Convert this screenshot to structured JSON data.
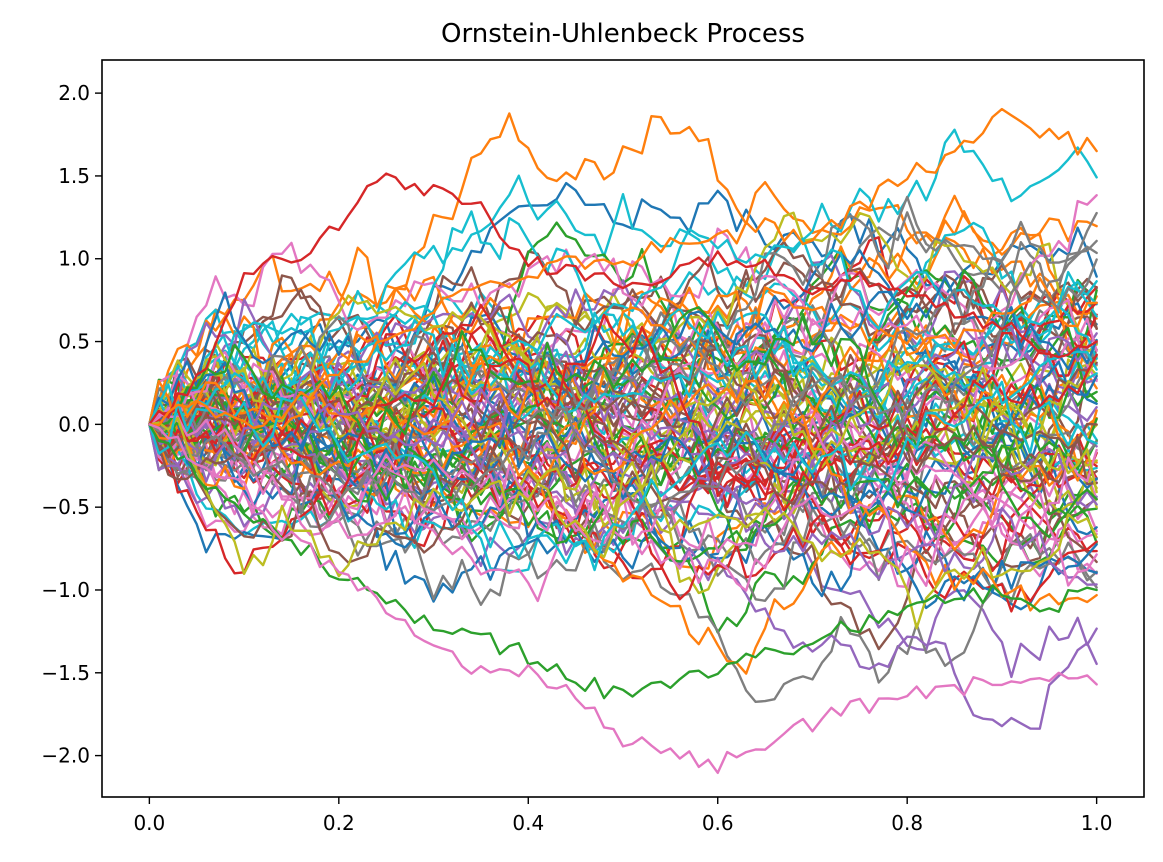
{
  "chart_data": {
    "type": "line",
    "title": "Ornstein-Uhlenbeck Process",
    "xlabel": "",
    "ylabel": "",
    "xlim": [
      -0.05,
      1.05
    ],
    "ylim": [
      -2.25,
      2.2
    ],
    "x_ticks": [
      0.0,
      0.2,
      0.4,
      0.6,
      0.8,
      1.0
    ],
    "x_tick_labels": [
      "0.0",
      "0.2",
      "0.4",
      "0.6",
      "0.8",
      "1.0"
    ],
    "y_ticks": [
      -2.0,
      -1.5,
      -1.0,
      -0.5,
      0.0,
      0.5,
      1.0,
      1.5,
      2.0
    ],
    "y_tick_labels": [
      "−2.0",
      "−1.5",
      "−1.0",
      "−0.5",
      "0.0",
      "0.5",
      "1.0",
      "1.5",
      "2.0"
    ],
    "grid": false,
    "legend": "none",
    "x_start": 0.0,
    "x_end": 1.0,
    "points_per_path": 101,
    "num_paths": 100,
    "start_value": 0.0,
    "theta": 1.0,
    "mu": 0.0,
    "sigma": 1.0,
    "random_seed": 12345,
    "palette": [
      "#1f77b4",
      "#ff7f0e",
      "#2ca02c",
      "#d62728",
      "#9467bd",
      "#8c564b",
      "#e377c2",
      "#7f7f7f",
      "#bcbd22",
      "#17becf"
    ],
    "representative_series": [
      {
        "x": [
          0.0,
          0.05,
          0.1,
          0.15,
          0.2,
          0.25,
          0.3,
          0.35,
          0.4,
          0.45,
          0.5,
          0.55,
          0.6,
          0.65,
          0.7,
          0.75,
          0.8,
          0.85,
          0.9,
          0.95,
          1.0
        ],
        "values": [
          0.0,
          0.25,
          0.9,
          1.0,
          1.2,
          1.5,
          1.4,
          1.3,
          1.0,
          0.9,
          0.85,
          0.9,
          1.0,
          0.95,
          0.8,
          0.9,
          0.8,
          0.7,
          0.6,
          0.4,
          0.5
        ]
      },
      {
        "x": [
          0.0,
          0.05,
          0.1,
          0.15,
          0.2,
          0.25,
          0.3,
          0.35,
          0.4,
          0.45,
          0.5,
          0.55,
          0.6,
          0.65,
          0.7,
          0.75,
          0.8,
          0.85,
          0.9,
          0.95,
          1.0
        ],
        "values": [
          0.0,
          0.1,
          0.0,
          0.1,
          0.3,
          0.5,
          0.7,
          0.8,
          0.9,
          1.0,
          0.95,
          1.1,
          1.1,
          1.2,
          1.1,
          1.3,
          1.5,
          1.6,
          1.95,
          1.75,
          1.65
        ]
      },
      {
        "x": [
          0.0,
          0.05,
          0.1,
          0.15,
          0.2,
          0.25,
          0.3,
          0.35,
          0.4,
          0.45,
          0.5,
          0.55,
          0.6,
          0.65,
          0.7,
          0.75,
          0.8,
          0.85,
          0.9,
          0.95,
          1.0
        ],
        "values": [
          0.0,
          -0.3,
          -0.5,
          -0.7,
          -0.9,
          -1.05,
          -1.2,
          -1.3,
          -1.4,
          -1.55,
          -1.65,
          -1.6,
          -1.45,
          -1.4,
          -1.3,
          -1.2,
          -1.1,
          -1.05,
          -1.0,
          -1.1,
          -1.0
        ]
      },
      {
        "x": [
          0.0,
          0.05,
          0.1,
          0.15,
          0.2,
          0.25,
          0.3,
          0.35,
          0.4,
          0.45,
          0.5,
          0.55,
          0.6,
          0.65,
          0.7,
          0.75,
          0.8,
          0.85,
          0.9,
          0.95,
          1.0
        ],
        "values": [
          0.0,
          -0.2,
          -0.4,
          -0.7,
          -0.9,
          -1.1,
          -1.3,
          -1.5,
          -1.5,
          -1.6,
          -1.9,
          -1.95,
          -2.05,
          -1.95,
          -1.8,
          -1.7,
          -1.65,
          -1.6,
          -1.55,
          -1.55,
          -1.57
        ]
      }
    ]
  }
}
